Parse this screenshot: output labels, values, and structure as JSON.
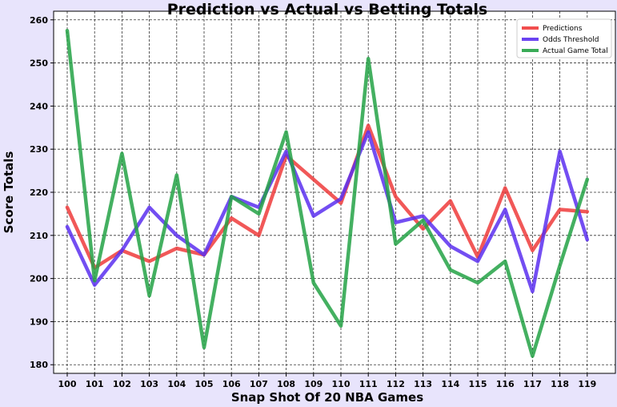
{
  "chart_data": {
    "type": "line",
    "title": "Prediction vs Actual vs Betting Totals",
    "xlabel": "Snap Shot Of 20 NBA Games",
    "ylabel": "Score Totals",
    "categories": [
      "100",
      "101",
      "102",
      "103",
      "104",
      "105",
      "106",
      "107",
      "108",
      "109",
      "110",
      "111",
      "112",
      "113",
      "114",
      "115",
      "116",
      "117",
      "118",
      "119"
    ],
    "ylim": [
      178,
      262
    ],
    "yticks": [
      180,
      190,
      200,
      210,
      220,
      230,
      240,
      250,
      260
    ],
    "grid": true,
    "legend_position": "top-right",
    "series": [
      {
        "name": "Predictions",
        "color": "#ef3b3b",
        "values": [
          216.5,
          202.5,
          206.5,
          204,
          207,
          205.5,
          214,
          210,
          228.5,
          223,
          217.5,
          235.5,
          219,
          211.5,
          218,
          205,
          221,
          206.5,
          216,
          215.5
        ]
      },
      {
        "name": "Odds Threshold",
        "color": "#5b2ff0",
        "values": [
          212,
          198.5,
          206.5,
          216.5,
          210,
          205.5,
          219,
          216.5,
          229.5,
          214.5,
          218.5,
          234,
          213,
          214.5,
          207.5,
          204,
          216,
          197,
          229.5,
          209
        ]
      },
      {
        "name": "Actual Game Total",
        "color": "#23a245",
        "values": [
          257.5,
          199.5,
          229,
          196,
          224,
          184,
          219,
          215,
          234,
          199,
          189,
          251,
          208,
          213.5,
          202,
          199,
          204,
          182,
          203,
          223
        ]
      }
    ]
  }
}
